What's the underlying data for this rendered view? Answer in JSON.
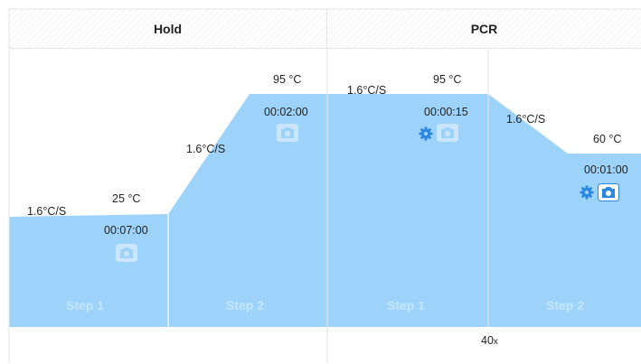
{
  "stages": [
    {
      "name": "Hold"
    },
    {
      "name": "PCR"
    }
  ],
  "steps": [
    {
      "step_label": "Step 1",
      "ramp_rate": "1.6°C/S",
      "temperature": "25 °C",
      "time": "00:07:00"
    },
    {
      "step_label": "Step 2",
      "ramp_rate": "1.6°C/S",
      "temperature": "95 °C",
      "time": "00:02:00"
    },
    {
      "step_label": "Step 1",
      "ramp_rate": "1.6°C/S",
      "temperature": "95 °C",
      "time": "00:00:15"
    },
    {
      "step_label": "Step 2",
      "ramp_rate": "1.6°C/S",
      "temperature": "60 °C",
      "time": "00:01:00"
    }
  ],
  "pcr_cycles": {
    "count": "40",
    "suffix": "x"
  },
  "icons": {
    "camera": "camera-icon",
    "settings": "gear-icon"
  },
  "colors": {
    "profile_fill": "#9dd3fb",
    "divider": "#ffffff",
    "accent": "#2a86e0"
  }
}
